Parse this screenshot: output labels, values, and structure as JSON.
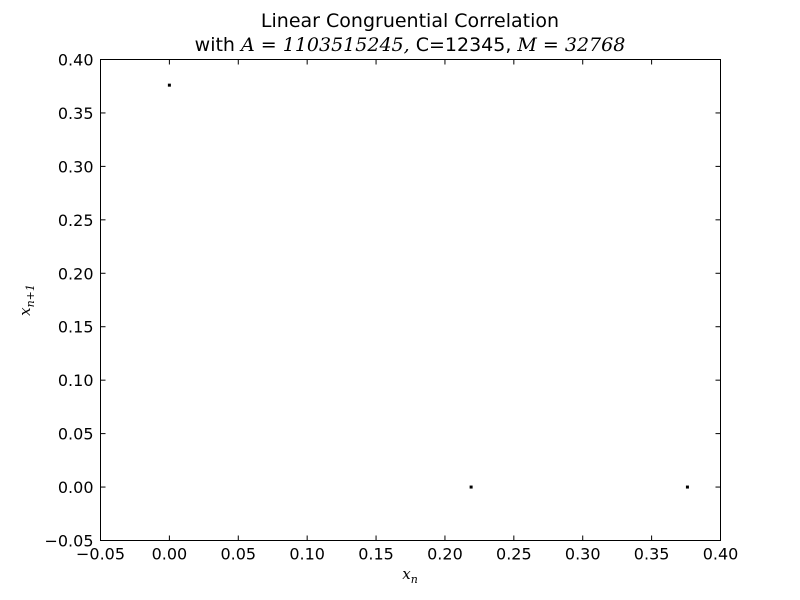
{
  "chart_data": {
    "type": "scatter",
    "title": "Linear Congruential Correlation",
    "subtitle": {
      "prefix": "with ",
      "a_expr": "A = 1103515245,",
      "c_expr": " C=12345,",
      "m_expr": " M = 32768"
    },
    "xlabel": {
      "base": "x",
      "sub": "n"
    },
    "ylabel": {
      "base": "x",
      "sub": "n+1"
    },
    "xlim": [
      -0.05,
      0.4
    ],
    "ylim": [
      -0.05,
      0.4
    ],
    "xticks": [
      -0.05,
      0.0,
      0.05,
      0.1,
      0.15,
      0.2,
      0.25,
      0.3,
      0.35,
      0.4
    ],
    "xtick_labels": [
      "−0.05",
      "0.00",
      "0.05",
      "0.10",
      "0.15",
      "0.20",
      "0.25",
      "0.30",
      "0.35",
      "0.40"
    ],
    "yticks": [
      -0.05,
      0.0,
      0.05,
      0.1,
      0.15,
      0.2,
      0.25,
      0.3,
      0.35,
      0.4
    ],
    "ytick_labels": [
      "−0.05",
      "0.00",
      "0.05",
      "0.10",
      "0.15",
      "0.20",
      "0.25",
      "0.30",
      "0.35",
      "0.40"
    ],
    "grid": false,
    "marker_color": "#000000",
    "points": [
      {
        "x": 0.0,
        "y": 0.376
      },
      {
        "x": 0.219,
        "y": 0.0
      },
      {
        "x": 0.376,
        "y": 0.0
      }
    ]
  }
}
